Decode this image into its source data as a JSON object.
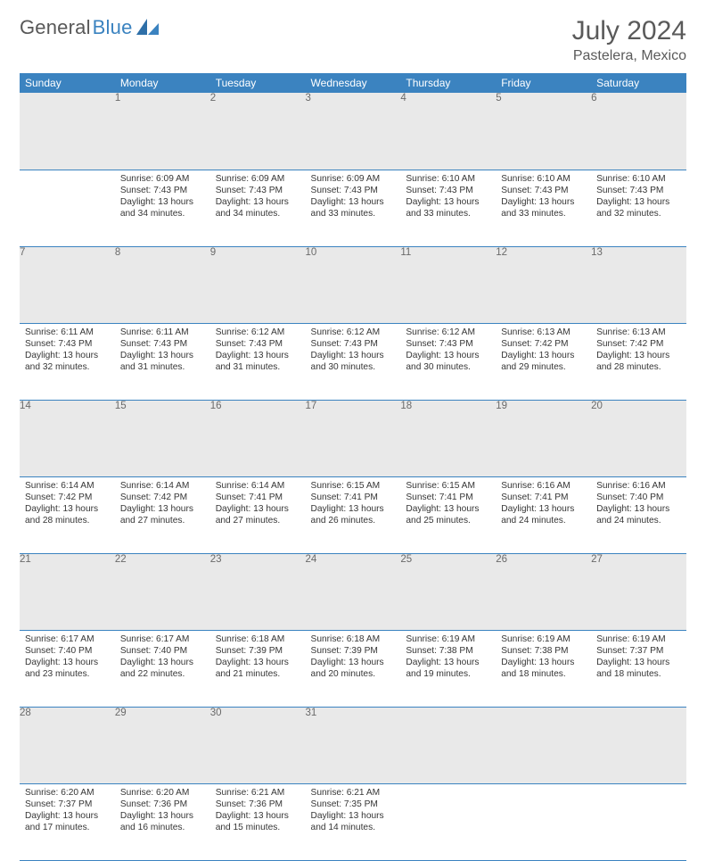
{
  "brand": {
    "part1": "General",
    "part2": "Blue"
  },
  "title": {
    "month": "July 2024",
    "location": "Pastelera, Mexico"
  },
  "calendar": {
    "day_headers": [
      "Sunday",
      "Monday",
      "Tuesday",
      "Wednesday",
      "Thursday",
      "Friday",
      "Saturday"
    ],
    "weeks": [
      {
        "nums": [
          "",
          "1",
          "2",
          "3",
          "4",
          "5",
          "6"
        ],
        "cells": [
          null,
          {
            "sunrise": "6:09 AM",
            "sunset": "7:43 PM",
            "daylight": "13 hours and 34 minutes."
          },
          {
            "sunrise": "6:09 AM",
            "sunset": "7:43 PM",
            "daylight": "13 hours and 34 minutes."
          },
          {
            "sunrise": "6:09 AM",
            "sunset": "7:43 PM",
            "daylight": "13 hours and 33 minutes."
          },
          {
            "sunrise": "6:10 AM",
            "sunset": "7:43 PM",
            "daylight": "13 hours and 33 minutes."
          },
          {
            "sunrise": "6:10 AM",
            "sunset": "7:43 PM",
            "daylight": "13 hours and 33 minutes."
          },
          {
            "sunrise": "6:10 AM",
            "sunset": "7:43 PM",
            "daylight": "13 hours and 32 minutes."
          }
        ]
      },
      {
        "nums": [
          "7",
          "8",
          "9",
          "10",
          "11",
          "12",
          "13"
        ],
        "cells": [
          {
            "sunrise": "6:11 AM",
            "sunset": "7:43 PM",
            "daylight": "13 hours and 32 minutes."
          },
          {
            "sunrise": "6:11 AM",
            "sunset": "7:43 PM",
            "daylight": "13 hours and 31 minutes."
          },
          {
            "sunrise": "6:12 AM",
            "sunset": "7:43 PM",
            "daylight": "13 hours and 31 minutes."
          },
          {
            "sunrise": "6:12 AM",
            "sunset": "7:43 PM",
            "daylight": "13 hours and 30 minutes."
          },
          {
            "sunrise": "6:12 AM",
            "sunset": "7:43 PM",
            "daylight": "13 hours and 30 minutes."
          },
          {
            "sunrise": "6:13 AM",
            "sunset": "7:42 PM",
            "daylight": "13 hours and 29 minutes."
          },
          {
            "sunrise": "6:13 AM",
            "sunset": "7:42 PM",
            "daylight": "13 hours and 28 minutes."
          }
        ]
      },
      {
        "nums": [
          "14",
          "15",
          "16",
          "17",
          "18",
          "19",
          "20"
        ],
        "cells": [
          {
            "sunrise": "6:14 AM",
            "sunset": "7:42 PM",
            "daylight": "13 hours and 28 minutes."
          },
          {
            "sunrise": "6:14 AM",
            "sunset": "7:42 PM",
            "daylight": "13 hours and 27 minutes."
          },
          {
            "sunrise": "6:14 AM",
            "sunset": "7:41 PM",
            "daylight": "13 hours and 27 minutes."
          },
          {
            "sunrise": "6:15 AM",
            "sunset": "7:41 PM",
            "daylight": "13 hours and 26 minutes."
          },
          {
            "sunrise": "6:15 AM",
            "sunset": "7:41 PM",
            "daylight": "13 hours and 25 minutes."
          },
          {
            "sunrise": "6:16 AM",
            "sunset": "7:41 PM",
            "daylight": "13 hours and 24 minutes."
          },
          {
            "sunrise": "6:16 AM",
            "sunset": "7:40 PM",
            "daylight": "13 hours and 24 minutes."
          }
        ]
      },
      {
        "nums": [
          "21",
          "22",
          "23",
          "24",
          "25",
          "26",
          "27"
        ],
        "cells": [
          {
            "sunrise": "6:17 AM",
            "sunset": "7:40 PM",
            "daylight": "13 hours and 23 minutes."
          },
          {
            "sunrise": "6:17 AM",
            "sunset": "7:40 PM",
            "daylight": "13 hours and 22 minutes."
          },
          {
            "sunrise": "6:18 AM",
            "sunset": "7:39 PM",
            "daylight": "13 hours and 21 minutes."
          },
          {
            "sunrise": "6:18 AM",
            "sunset": "7:39 PM",
            "daylight": "13 hours and 20 minutes."
          },
          {
            "sunrise": "6:19 AM",
            "sunset": "7:38 PM",
            "daylight": "13 hours and 19 minutes."
          },
          {
            "sunrise": "6:19 AM",
            "sunset": "7:38 PM",
            "daylight": "13 hours and 18 minutes."
          },
          {
            "sunrise": "6:19 AM",
            "sunset": "7:37 PM",
            "daylight": "13 hours and 18 minutes."
          }
        ]
      },
      {
        "nums": [
          "28",
          "29",
          "30",
          "31",
          "",
          "",
          ""
        ],
        "cells": [
          {
            "sunrise": "6:20 AM",
            "sunset": "7:37 PM",
            "daylight": "13 hours and 17 minutes."
          },
          {
            "sunrise": "6:20 AM",
            "sunset": "7:36 PM",
            "daylight": "13 hours and 16 minutes."
          },
          {
            "sunrise": "6:21 AM",
            "sunset": "7:36 PM",
            "daylight": "13 hours and 15 minutes."
          },
          {
            "sunrise": "6:21 AM",
            "sunset": "7:35 PM",
            "daylight": "13 hours and 14 minutes."
          },
          null,
          null,
          null
        ]
      }
    ],
    "labels": {
      "sunrise_prefix": "Sunrise: ",
      "sunset_prefix": "Sunset: ",
      "daylight_prefix": "Daylight: "
    },
    "colors": {
      "header_bg": "#3b83c0",
      "header_fg": "#ffffff",
      "daynum_bg": "#e9e9e9",
      "daynum_fg": "#6a6a6a",
      "rule": "#3b83c0",
      "text": "#363636"
    }
  }
}
